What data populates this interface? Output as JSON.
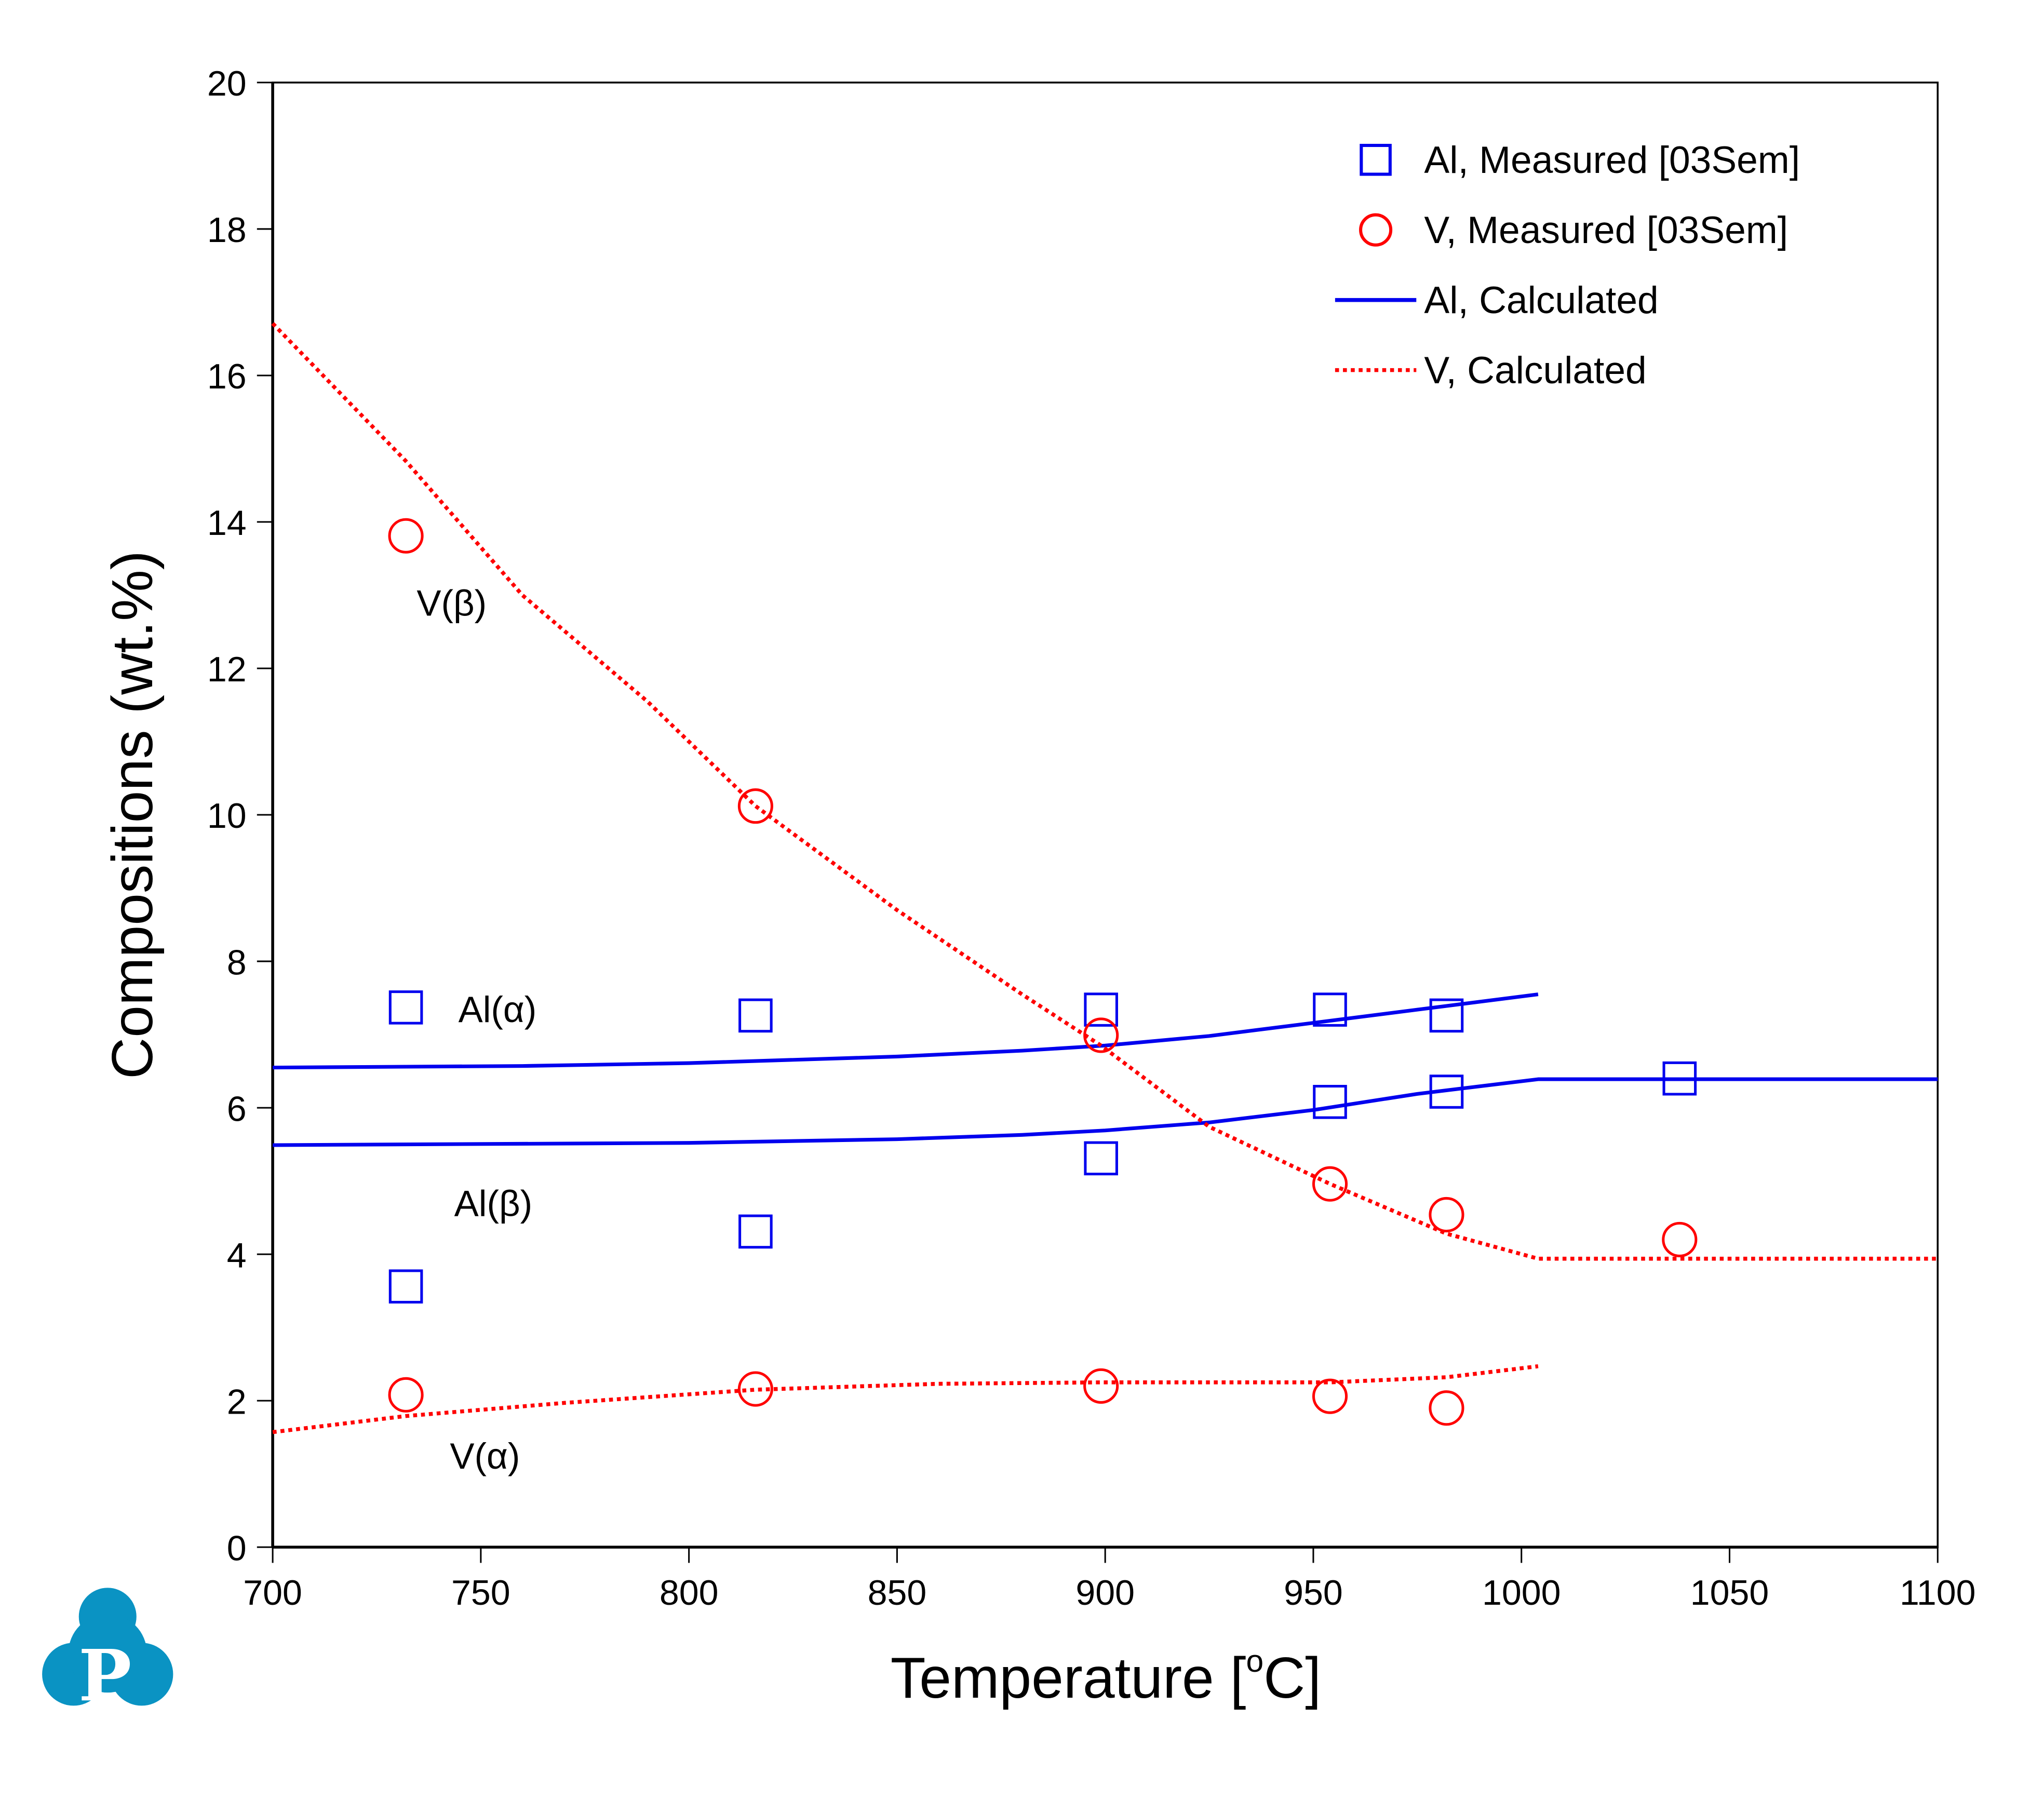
{
  "chart_data": {
    "type": "scatter",
    "title": "",
    "xlabel": "Temperature [°C]",
    "xlabel_parts": {
      "main": "Temperature [",
      "sup": "o",
      "unit": "C]"
    },
    "ylabel": "Compositions (wt.%)",
    "xlim": [
      700,
      1100
    ],
    "ylim": [
      0,
      20
    ],
    "xticks": [
      700,
      750,
      800,
      850,
      900,
      950,
      1000,
      1050,
      1100
    ],
    "yticks": [
      0,
      2,
      4,
      6,
      8,
      10,
      12,
      14,
      16,
      18,
      20
    ],
    "grid": false,
    "legend_position": "top-right",
    "colors": {
      "al": "#0000ee",
      "v": "#ff0000",
      "logo": "#0a93c3"
    },
    "legend": [
      {
        "label": "Al, Measured [03Sem]",
        "marker": "square",
        "color": "#0000ee"
      },
      {
        "label": "V, Measured [03Sem]",
        "marker": "circle",
        "color": "#ff0000"
      },
      {
        "label": "Al, Calculated",
        "line": "solid",
        "color": "#0000ee"
      },
      {
        "label": "V, Calculated",
        "line": "dotted",
        "color": "#ff0000"
      }
    ],
    "series": [
      {
        "name": "Al, Measured [03Sem]",
        "kind": "scatter",
        "marker": "square",
        "color": "#0000ee",
        "points": [
          [
            732,
            7.37
          ],
          [
            816,
            7.26
          ],
          [
            899,
            7.34
          ],
          [
            954,
            7.34
          ],
          [
            982,
            7.26
          ],
          [
            732,
            3.56
          ],
          [
            816,
            4.31
          ],
          [
            899,
            5.31
          ],
          [
            954,
            6.08
          ],
          [
            982,
            6.22
          ],
          [
            1038,
            6.4
          ]
        ]
      },
      {
        "name": "V, Measured [03Sem]",
        "kind": "scatter",
        "marker": "circle",
        "color": "#ff0000",
        "points": [
          [
            732,
            13.81
          ],
          [
            816,
            10.12
          ],
          [
            899,
            6.99
          ],
          [
            954,
            4.96
          ],
          [
            982,
            4.54
          ],
          [
            1038,
            4.2
          ],
          [
            732,
            2.08
          ],
          [
            816,
            2.16
          ],
          [
            899,
            2.2
          ],
          [
            954,
            2.06
          ],
          [
            982,
            1.9
          ]
        ]
      },
      {
        "name": "Al(α) Calculated",
        "kind": "line",
        "style": "solid",
        "color": "#0000ee",
        "points": [
          [
            700,
            6.55
          ],
          [
            760,
            6.57
          ],
          [
            800,
            6.61
          ],
          [
            850,
            6.7
          ],
          [
            880,
            6.78
          ],
          [
            900,
            6.85
          ],
          [
            925,
            6.98
          ],
          [
            950,
            7.16
          ],
          [
            975,
            7.34
          ],
          [
            1004,
            7.55
          ]
        ]
      },
      {
        "name": "Al(β) Calculated",
        "kind": "line",
        "style": "solid",
        "color": "#0000ee",
        "points": [
          [
            700,
            5.49
          ],
          [
            800,
            5.52
          ],
          [
            850,
            5.57
          ],
          [
            880,
            5.63
          ],
          [
            900,
            5.69
          ],
          [
            925,
            5.8
          ],
          [
            950,
            5.97
          ],
          [
            975,
            6.19
          ],
          [
            1004,
            6.39
          ],
          [
            1100,
            6.39
          ]
        ]
      },
      {
        "name": "V(β) Calculated",
        "kind": "line",
        "style": "dotted",
        "color": "#ff0000",
        "points": [
          [
            700,
            16.71
          ],
          [
            732,
            14.83
          ],
          [
            760,
            13.0
          ],
          [
            790,
            11.55
          ],
          [
            816,
            10.12
          ],
          [
            850,
            8.7
          ],
          [
            880,
            7.55
          ],
          [
            899,
            6.85
          ],
          [
            925,
            5.74
          ],
          [
            954,
            4.96
          ],
          [
            982,
            4.28
          ],
          [
            1004,
            3.94
          ],
          [
            1100,
            3.94
          ]
        ]
      },
      {
        "name": "V(α) Calculated",
        "kind": "line",
        "style": "dotted",
        "color": "#ff0000",
        "points": [
          [
            700,
            1.57
          ],
          [
            732,
            1.79
          ],
          [
            770,
            1.97
          ],
          [
            816,
            2.15
          ],
          [
            860,
            2.23
          ],
          [
            899,
            2.25
          ],
          [
            954,
            2.25
          ],
          [
            982,
            2.32
          ],
          [
            1004,
            2.47
          ]
        ]
      }
    ],
    "annotations": [
      {
        "text": "V(β)",
        "x": 743,
        "y": 12.9
      },
      {
        "text": "Al(α)",
        "x": 754,
        "y": 7.35
      },
      {
        "text": "Al(β)",
        "x": 753,
        "y": 4.7
      },
      {
        "text": "V(α)",
        "x": 751,
        "y": 1.25
      }
    ]
  },
  "logo": {
    "letter": "P"
  }
}
